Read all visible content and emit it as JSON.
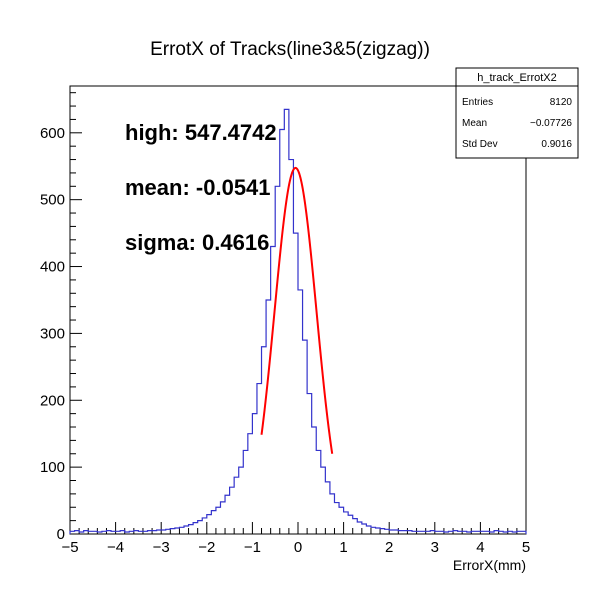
{
  "chart_data": {
    "type": "histogram",
    "title": "ErrotX of Tracks(line3&5(zigzag))",
    "xlabel": "ErrorX(mm)",
    "ylabel": "",
    "xlim": [
      -5,
      5
    ],
    "ylim": [
      0,
      670
    ],
    "x_ticks": [
      -5,
      -4,
      -3,
      -2,
      -1,
      0,
      1,
      2,
      3,
      4,
      5
    ],
    "x_tick_labels": [
      "−5",
      "−4",
      "−3",
      "−2",
      "−1",
      "0",
      "1",
      "2",
      "3",
      "4",
      "5"
    ],
    "y_ticks": [
      0,
      100,
      200,
      300,
      400,
      500,
      600
    ],
    "y_tick_labels": [
      "0",
      "100",
      "200",
      "300",
      "400",
      "500",
      "600"
    ],
    "grid": false,
    "histogram": {
      "name": "h_track_ErrotX2",
      "bin_low": -5,
      "bin_high": 5,
      "n_bins": 100,
      "color": "#3333cc",
      "counts": [
        4,
        5,
        3,
        5,
        4,
        4,
        3,
        4,
        5,
        4,
        4,
        5,
        3,
        4,
        5,
        4,
        4,
        5,
        5,
        6,
        6,
        7,
        8,
        9,
        10,
        12,
        14,
        17,
        20,
        24,
        29,
        35,
        40,
        48,
        58,
        70,
        85,
        100,
        125,
        150,
        180,
        225,
        280,
        350,
        430,
        520,
        605,
        635,
        560,
        450,
        365,
        290,
        210,
        160,
        125,
        100,
        78,
        60,
        47,
        40,
        33,
        28,
        23,
        18,
        15,
        12,
        10,
        9,
        8,
        7,
        6,
        6,
        5,
        5,
        5,
        4,
        4,
        4,
        4,
        5,
        4,
        4,
        3,
        4,
        5,
        4,
        4,
        3,
        4,
        4,
        4,
        4,
        3,
        5,
        4,
        3,
        4,
        3,
        4,
        4
      ]
    },
    "fit": {
      "color": "#ff0000",
      "high": 547.4742,
      "mean": -0.0541,
      "sigma": 0.4616,
      "x_from": -0.8,
      "x_to": 0.75
    },
    "annotations": [
      {
        "label": "high: 547.4742"
      },
      {
        "label": "mean: -0.0541"
      },
      {
        "label": "sigma: 0.4616"
      }
    ],
    "stats_box": {
      "title": "h_track_ErrotX2",
      "rows": [
        {
          "key": "Entries",
          "value": "8120"
        },
        {
          "key": "Mean",
          "value": "−0.07726"
        },
        {
          "key": "Std Dev",
          "value": "0.9016"
        }
      ]
    }
  }
}
